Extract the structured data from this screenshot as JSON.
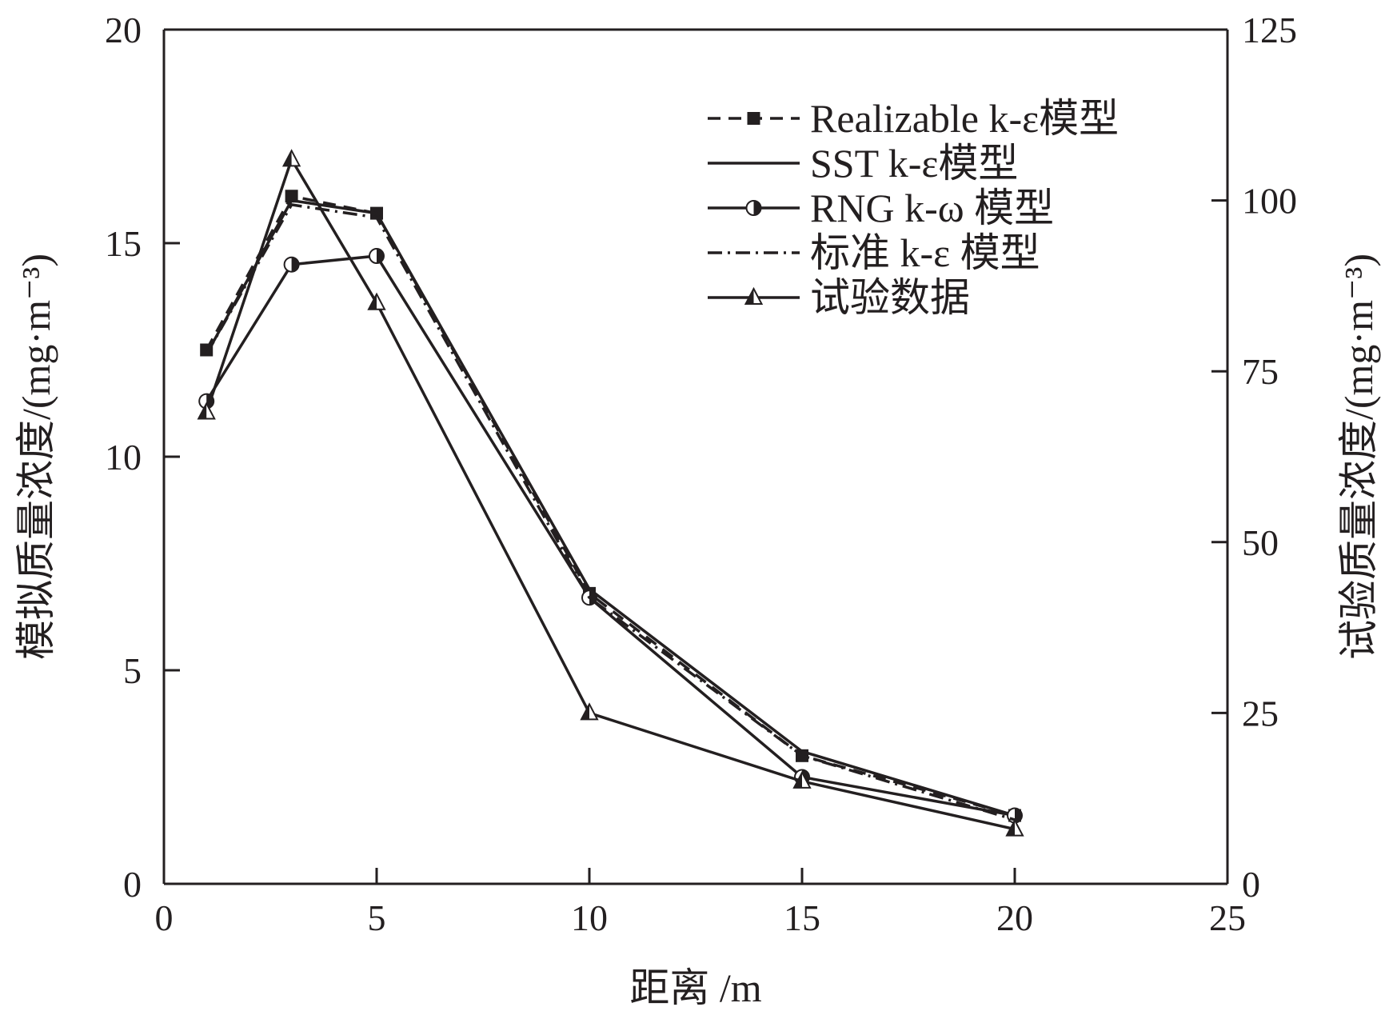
{
  "chart_data": {
    "type": "line",
    "xlabel": "距离 /m",
    "ylabel_left": "模拟质量浓度/(mg·m⁻³)",
    "ylabel_right": "试验质量浓度/(mg·m⁻³)",
    "xlim": [
      0,
      25
    ],
    "ylim_left": [
      0,
      20
    ],
    "ylim_right": [
      0,
      125
    ],
    "xticks": [
      "0",
      "5",
      "10",
      "15",
      "20",
      "25"
    ],
    "yticks_left": [
      "0",
      "5",
      "10",
      "15",
      "20"
    ],
    "yticks_right": [
      "0",
      "25",
      "50",
      "75",
      "100",
      "125"
    ],
    "grid": false,
    "legend_position": "top-right",
    "x": [
      1,
      3,
      5,
      10,
      15,
      20
    ],
    "series": [
      {
        "name": "Realizable k-ε模型",
        "axis": "left",
        "style": "dashed",
        "marker": "filled-square",
        "values": [
          12.5,
          16.1,
          15.7,
          6.8,
          3.0,
          1.6
        ]
      },
      {
        "name": "SST k-ε模型",
        "axis": "left",
        "style": "solid",
        "marker": "none",
        "values": [
          12.4,
          16.0,
          15.7,
          6.9,
          3.1,
          1.6
        ]
      },
      {
        "name": "RNG k-ω 模型",
        "axis": "left",
        "style": "solid",
        "marker": "half-filled-circle",
        "values": [
          11.3,
          14.5,
          14.7,
          6.7,
          2.5,
          1.6
        ]
      },
      {
        "name": "标准 k-ε 模型",
        "axis": "left",
        "style": "dash-dot",
        "marker": "none",
        "values": [
          12.4,
          15.9,
          15.6,
          6.7,
          3.0,
          1.5
        ]
      },
      {
        "name": "试验数据",
        "axis": "right",
        "style": "solid",
        "marker": "half-filled-triangle",
        "values": [
          69,
          106,
          85,
          25,
          15,
          8
        ]
      }
    ],
    "colors": {
      "line": "#231f20",
      "background": "#ffffff"
    }
  }
}
